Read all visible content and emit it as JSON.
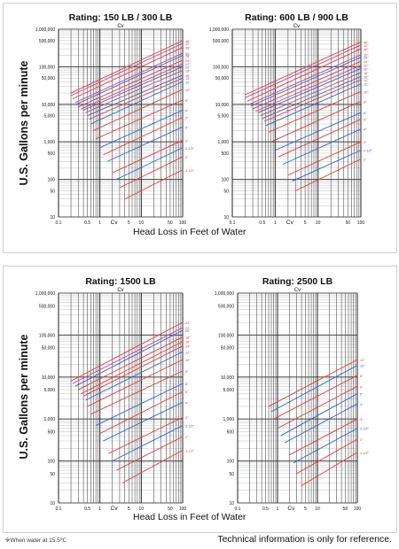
{
  "panels": {
    "top": {
      "ylabel": "U.S. Gallons per minute",
      "xlabel": "Head Loss in Feet of Water"
    },
    "bottom": {
      "ylabel": "U.S. Gallons per minute",
      "xlabel": "Head Loss in Feet of Water"
    }
  },
  "footer": {
    "note": "※When water at 15.5℃",
    "disclaimer": "Technical information is only for reference."
  },
  "colors": {
    "red": "#e23a3a",
    "blue": "#2d64c8",
    "magenta": "#cc3b8c",
    "grid": "#222222",
    "hgrid": "#9aa0a6"
  },
  "chart_data": [
    {
      "type": "line",
      "title": "Rating: 150 LB / 300 LB",
      "cv_label": "Cv",
      "x_scale": "log",
      "y_scale": "log",
      "xlim": [
        0.1,
        100
      ],
      "ylim": [
        10,
        1000000
      ],
      "x_ticks": [
        "0.1",
        "0.5",
        "1",
        "Cv",
        "5",
        "10",
        "50",
        "100"
      ],
      "y_ticks": [
        "1,000,000",
        "500,000",
        "100,000",
        "50,000",
        "10,000",
        "5,000",
        "1,000",
        "500",
        "100",
        "50",
        "10"
      ],
      "series": [
        {
          "name": "48\"",
          "color": "red",
          "points": [
            [
              0.2,
              20000
            ],
            [
              100,
              500000
            ]
          ]
        },
        {
          "name": "42\"",
          "color": "magenta",
          "points": [
            [
              0.2,
              17000
            ],
            [
              100,
              420000
            ]
          ]
        },
        {
          "name": "36\"",
          "color": "red",
          "points": [
            [
              0.22,
              14000
            ],
            [
              100,
              330000
            ]
          ]
        },
        {
          "name": "30\"",
          "color": "magenta",
          "points": [
            [
              0.25,
              11000
            ],
            [
              100,
              230000
            ]
          ]
        },
        {
          "name": "28\"",
          "color": "blue",
          "points": [
            [
              0.27,
              10000
            ],
            [
              100,
              200000
            ]
          ]
        },
        {
          "name": "24\"",
          "color": "red",
          "points": [
            [
              0.3,
              8500
            ],
            [
              100,
              150000
            ]
          ]
        },
        {
          "name": "22\"",
          "color": "magenta",
          "points": [
            [
              0.35,
              7500
            ],
            [
              100,
              120000
            ]
          ]
        },
        {
          "name": "20\"",
          "color": "blue",
          "points": [
            [
              0.4,
              7000
            ],
            [
              100,
              100000
            ]
          ]
        },
        {
          "name": "18\"",
          "color": "red",
          "points": [
            [
              0.45,
              6000
            ],
            [
              100,
              80000
            ]
          ]
        },
        {
          "name": "16\"",
          "color": "blue",
          "points": [
            [
              0.5,
              5000
            ],
            [
              100,
              60000
            ]
          ]
        },
        {
          "name": "14\"",
          "color": "red",
          "points": [
            [
              0.55,
              4000
            ],
            [
              100,
              50000
            ]
          ]
        },
        {
          "name": "12\"",
          "color": "blue",
          "points": [
            [
              0.6,
              3000
            ],
            [
              100,
              40000
            ]
          ]
        },
        {
          "name": "10\"",
          "color": "red",
          "points": [
            [
              0.7,
              2000
            ],
            [
              100,
              25000
            ]
          ]
        },
        {
          "name": "8\"",
          "color": "red",
          "points": [
            [
              0.8,
              1200
            ],
            [
              100,
              13000
            ]
          ]
        },
        {
          "name": "6\"",
          "color": "blue",
          "points": [
            [
              1.0,
              700
            ],
            [
              100,
              7000
            ]
          ]
        },
        {
          "name": "5\"",
          "color": "red",
          "points": [
            [
              1.2,
              450
            ],
            [
              100,
              4500
            ]
          ]
        },
        {
          "name": "4\"",
          "color": "blue",
          "points": [
            [
              1.5,
              300
            ],
            [
              100,
              2500
            ]
          ]
        },
        {
          "name": "3\"",
          "color": "red",
          "points": [
            [
              2.0,
              150
            ],
            [
              100,
              1100
            ]
          ]
        },
        {
          "name": "2-1/2\"",
          "color": "blue",
          "points": [
            [
              2.5,
              100
            ],
            [
              100,
              700
            ]
          ]
        },
        {
          "name": "2\"",
          "color": "red",
          "points": [
            [
              3.0,
              60
            ],
            [
              100,
              400
            ]
          ]
        },
        {
          "name": "1-1/2\"",
          "color": "red",
          "points": [
            [
              4.0,
              30
            ],
            [
              100,
              180
            ]
          ]
        }
      ]
    },
    {
      "type": "line",
      "title": "Rating: 600 LB / 900 LB",
      "cv_label": "Cv",
      "x_scale": "log",
      "y_scale": "log",
      "xlim": [
        0.1,
        100
      ],
      "ylim": [
        10,
        1000000
      ],
      "x_ticks": [
        "0.1",
        "0.5",
        "1",
        "Cv",
        "5",
        "10",
        "50",
        "100"
      ],
      "y_ticks": [
        "1,000,000",
        "500,000",
        "100,000",
        "50,000",
        "10,000",
        "5,000",
        "1,000",
        "500",
        "100",
        "50",
        "10"
      ],
      "series": [
        {
          "name": "48\"",
          "color": "red",
          "points": [
            [
              0.2,
              18000
            ],
            [
              100,
              460000
            ]
          ]
        },
        {
          "name": "42\"",
          "color": "magenta",
          "points": [
            [
              0.2,
              15000
            ],
            [
              100,
              380000
            ]
          ]
        },
        {
          "name": "36\"",
          "color": "red",
          "points": [
            [
              0.22,
              12000
            ],
            [
              100,
              300000
            ]
          ]
        },
        {
          "name": "30\"",
          "color": "magenta",
          "points": [
            [
              0.25,
              10000
            ],
            [
              100,
              210000
            ]
          ]
        },
        {
          "name": "28\"",
          "color": "blue",
          "points": [
            [
              0.27,
              9000
            ],
            [
              100,
              180000
            ]
          ]
        },
        {
          "name": "24\"",
          "color": "red",
          "points": [
            [
              0.3,
              7500
            ],
            [
              100,
              140000
            ]
          ]
        },
        {
          "name": "22\"",
          "color": "magenta",
          "points": [
            [
              0.35,
              6500
            ],
            [
              100,
              110000
            ]
          ]
        },
        {
          "name": "20\"",
          "color": "blue",
          "points": [
            [
              0.4,
              6000
            ],
            [
              100,
              90000
            ]
          ]
        },
        {
          "name": "18\"",
          "color": "red",
          "points": [
            [
              0.45,
              5000
            ],
            [
              100,
              70000
            ]
          ]
        },
        {
          "name": "16\"",
          "color": "blue",
          "points": [
            [
              0.5,
              4200
            ],
            [
              100,
              55000
            ]
          ]
        },
        {
          "name": "14\"",
          "color": "red",
          "points": [
            [
              0.55,
              3500
            ],
            [
              100,
              45000
            ]
          ]
        },
        {
          "name": "12\"",
          "color": "blue",
          "points": [
            [
              0.6,
              2700
            ],
            [
              100,
              35000
            ]
          ]
        },
        {
          "name": "10\"",
          "color": "red",
          "points": [
            [
              0.7,
              1800
            ],
            [
              100,
              22000
            ]
          ]
        },
        {
          "name": "8\"",
          "color": "red",
          "points": [
            [
              0.8,
              1000
            ],
            [
              100,
              12000
            ]
          ]
        },
        {
          "name": "6\"",
          "color": "blue",
          "points": [
            [
              1.0,
              600
            ],
            [
              100,
              6000
            ]
          ]
        },
        {
          "name": "5\"",
          "color": "red",
          "points": [
            [
              1.2,
              400
            ],
            [
              100,
              4000
            ]
          ]
        },
        {
          "name": "4\"",
          "color": "blue",
          "points": [
            [
              1.5,
              250
            ],
            [
              100,
              2200
            ]
          ]
        },
        {
          "name": "3\"",
          "color": "red",
          "points": [
            [
              2.0,
              130
            ],
            [
              100,
              1000
            ]
          ]
        },
        {
          "name": "2-1/2\"",
          "color": "blue",
          "points": [
            [
              2.5,
              90
            ],
            [
              100,
              600
            ]
          ]
        },
        {
          "name": "2\"",
          "color": "red",
          "points": [
            [
              3.0,
              50
            ],
            [
              100,
              350
            ]
          ]
        }
      ]
    },
    {
      "type": "line",
      "title": "Rating: 1500 LB",
      "cv_label": "Cv",
      "x_scale": "log",
      "y_scale": "log",
      "xlim": [
        0.1,
        100
      ],
      "ylim": [
        10,
        1000000
      ],
      "x_ticks": [
        "0.1",
        "0.5",
        "1",
        "Cv",
        "5",
        "10",
        "50",
        "100"
      ],
      "y_ticks": [
        "1,000,000",
        "500,000",
        "100,000",
        "50,000",
        "10,000",
        "5,000",
        "1,000",
        "500",
        "100",
        "50",
        "10"
      ],
      "series": [
        {
          "name": "24\"",
          "color": "red",
          "points": [
            [
              0.2,
              8000
            ],
            [
              100,
              200000
            ]
          ]
        },
        {
          "name": "22\"",
          "color": "magenta",
          "points": [
            [
              0.22,
              7000
            ],
            [
              100,
              150000
            ]
          ]
        },
        {
          "name": "20\"",
          "color": "blue",
          "points": [
            [
              0.25,
              6000
            ],
            [
              100,
              130000
            ]
          ]
        },
        {
          "name": "18\"",
          "color": "red",
          "points": [
            [
              0.3,
              5000
            ],
            [
              100,
              90000
            ]
          ]
        },
        {
          "name": "16\"",
          "color": "red",
          "points": [
            [
              0.35,
              4000
            ],
            [
              100,
              70000
            ]
          ]
        },
        {
          "name": "14\"",
          "color": "red",
          "points": [
            [
              0.4,
              3500
            ],
            [
              100,
              55000
            ]
          ]
        },
        {
          "name": "12\"",
          "color": "blue",
          "points": [
            [
              0.45,
              2800
            ],
            [
              100,
              40000
            ]
          ]
        },
        {
          "name": "10\"",
          "color": "red",
          "points": [
            [
              0.5,
              2000
            ],
            [
              100,
              26000
            ]
          ]
        },
        {
          "name": "8\"",
          "color": "red",
          "points": [
            [
              0.6,
              1300
            ],
            [
              100,
              14000
            ]
          ]
        },
        {
          "name": "6\"",
          "color": "blue",
          "points": [
            [
              0.8,
              700
            ],
            [
              100,
              7000
            ]
          ]
        },
        {
          "name": "5\"",
          "color": "red",
          "points": [
            [
              1.0,
              450
            ],
            [
              100,
              4500
            ]
          ]
        },
        {
          "name": "4\"",
          "color": "blue",
          "points": [
            [
              1.2,
              300
            ],
            [
              100,
              2500
            ]
          ]
        },
        {
          "name": "3\"",
          "color": "red",
          "points": [
            [
              1.6,
              150
            ],
            [
              100,
              1100
            ]
          ]
        },
        {
          "name": "2-1/2\"",
          "color": "blue",
          "points": [
            [
              2.0,
              100
            ],
            [
              100,
              700
            ]
          ]
        },
        {
          "name": "2\"",
          "color": "red",
          "points": [
            [
              2.5,
              60
            ],
            [
              100,
              380
            ]
          ]
        },
        {
          "name": "1-1/2\"",
          "color": "red",
          "points": [
            [
              3.5,
              30
            ],
            [
              100,
              180
            ]
          ]
        }
      ]
    },
    {
      "type": "line",
      "title": "Rating: 2500 LB",
      "cv_label": "Cv",
      "x_scale": "log",
      "y_scale": "log",
      "xlim": [
        0.1,
        100
      ],
      "ylim": [
        10,
        1000000
      ],
      "x_ticks": [
        "0.1",
        "0.5",
        "1",
        "Cv",
        "5",
        "10",
        "50",
        "100"
      ],
      "y_ticks": [
        "1,000,000",
        "500,000",
        "100,000",
        "50,000",
        "10,000",
        "5,000",
        "1,000",
        "500",
        "100",
        "50",
        "10"
      ],
      "series": [
        {
          "name": "12\"",
          "color": "red",
          "points": [
            [
              0.6,
              2000
            ],
            [
              100,
              26000
            ]
          ]
        },
        {
          "name": "10\"",
          "color": "blue",
          "points": [
            [
              0.7,
              1500
            ],
            [
              100,
              19000
            ]
          ]
        },
        {
          "name": "8\"",
          "color": "red",
          "points": [
            [
              0.8,
              1000
            ],
            [
              100,
              11000
            ]
          ]
        },
        {
          "name": "6\"",
          "color": "red",
          "points": [
            [
              1.0,
              600
            ],
            [
              100,
              6000
            ]
          ]
        },
        {
          "name": "5\"",
          "color": "blue",
          "points": [
            [
              1.2,
              400
            ],
            [
              100,
              4000
            ]
          ]
        },
        {
          "name": "4\"",
          "color": "blue",
          "points": [
            [
              1.5,
              270
            ],
            [
              100,
              2300
            ]
          ]
        },
        {
          "name": "3\"",
          "color": "red",
          "points": [
            [
              2.0,
              140
            ],
            [
              100,
              1000
            ]
          ]
        },
        {
          "name": "2-1/2\"",
          "color": "blue",
          "points": [
            [
              2.5,
              90
            ],
            [
              100,
              600
            ]
          ]
        },
        {
          "name": "2\"",
          "color": "red",
          "points": [
            [
              3.0,
              50
            ],
            [
              100,
              330
            ]
          ]
        },
        {
          "name": "1-1/2\"",
          "color": "red",
          "points": [
            [
              4.0,
              26
            ],
            [
              100,
              160
            ]
          ]
        }
      ]
    }
  ]
}
